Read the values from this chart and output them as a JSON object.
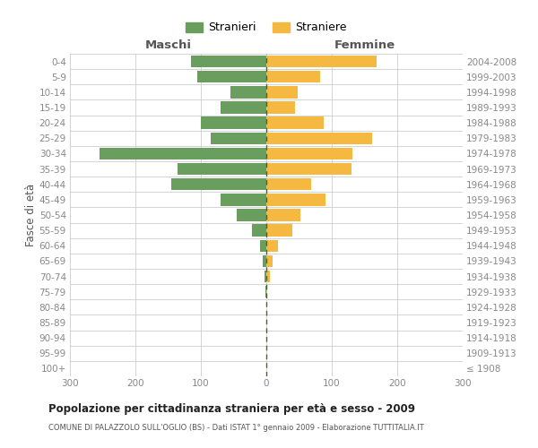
{
  "age_groups": [
    "100+",
    "95-99",
    "90-94",
    "85-89",
    "80-84",
    "75-79",
    "70-74",
    "65-69",
    "60-64",
    "55-59",
    "50-54",
    "45-49",
    "40-44",
    "35-39",
    "30-34",
    "25-29",
    "20-24",
    "15-19",
    "10-14",
    "5-9",
    "0-4"
  ],
  "birth_years": [
    "≤ 1908",
    "1909-1913",
    "1914-1918",
    "1919-1923",
    "1924-1928",
    "1929-1933",
    "1934-1938",
    "1939-1943",
    "1944-1948",
    "1949-1953",
    "1954-1958",
    "1959-1963",
    "1964-1968",
    "1969-1973",
    "1974-1978",
    "1979-1983",
    "1984-1988",
    "1989-1993",
    "1994-1998",
    "1999-2003",
    "2004-2008"
  ],
  "males": [
    0,
    0,
    0,
    0,
    0,
    2,
    3,
    5,
    10,
    22,
    45,
    70,
    145,
    135,
    255,
    85,
    100,
    70,
    55,
    105,
    115
  ],
  "females": [
    0,
    0,
    0,
    0,
    0,
    2,
    6,
    9,
    18,
    40,
    52,
    90,
    68,
    130,
    132,
    162,
    88,
    44,
    48,
    82,
    168
  ],
  "male_color": "#6a9e5f",
  "female_color": "#f5b942",
  "center_line_color_dark": "#5a5a2a",
  "center_line_color_light": "#c8c870",
  "grid_color": "#cccccc",
  "background_color": "#ffffff",
  "title": "Popolazione per cittadinanza straniera per età e sesso - 2009",
  "subtitle": "COMUNE DI PALAZZOLO SULL'OGLIO (BS) - Dati ISTAT 1° gennaio 2009 - Elaborazione TUTTITALIA.IT",
  "ylabel_left": "Fasce di età",
  "xlabel_left": "Maschi",
  "xlabel_right": "Femmine",
  "legend_male": "Stranieri",
  "legend_female": "Straniere",
  "xlim": 300,
  "tick_color": "#888888",
  "label_color": "#555555",
  "title_color": "#222222"
}
